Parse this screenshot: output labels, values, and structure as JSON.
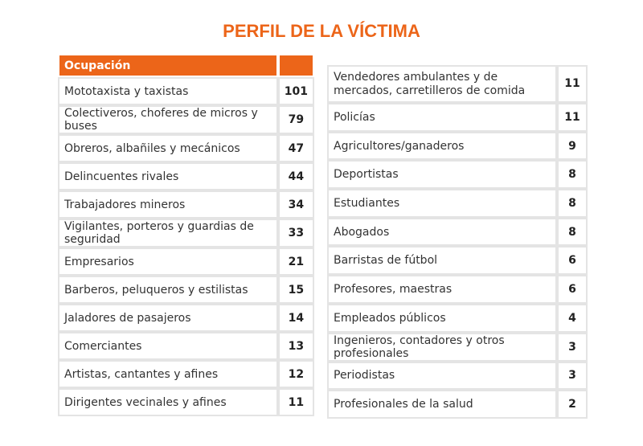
{
  "title": "PERFIL DE LA VÍCTIMA",
  "left_table": {
    "header": "Ocupación",
    "rows": [
      {
        "label": "Mototaxista y taxistas",
        "value": "101"
      },
      {
        "label": "Colectiveros, choferes de micros y buses",
        "value": "79"
      },
      {
        "label": "Obreros, albañiles y mecánicos",
        "value": "47"
      },
      {
        "label": "Delincuentes rivales",
        "value": "44"
      },
      {
        "label": "Trabajadores mineros",
        "value": "34"
      },
      {
        "label": "Vigilantes, porteros y guardias de seguridad",
        "value": "33"
      },
      {
        "label": "Empresarios",
        "value": "21"
      },
      {
        "label": "Barberos, peluqueros y estilistas",
        "value": "15"
      },
      {
        "label": "Jaladores de pasajeros",
        "value": "14"
      },
      {
        "label": "Comerciantes",
        "value": "13"
      },
      {
        "label": "Artistas, cantantes y afines",
        "value": "12"
      },
      {
        "label": "Dirigentes vecinales y afines",
        "value": "11"
      }
    ]
  },
  "right_table": {
    "rows": [
      {
        "label": "Vendedores ambulantes y de mercados, carretilleros de comida",
        "value": "11"
      },
      {
        "label": "Policías",
        "value": "11"
      },
      {
        "label": "Agricultores/ganaderos",
        "value": "9"
      },
      {
        "label": "Deportistas",
        "value": "8"
      },
      {
        "label": "Estudiantes",
        "value": "8"
      },
      {
        "label": "Abogados",
        "value": "8"
      },
      {
        "label": "Barristas de fútbol",
        "value": "6"
      },
      {
        "label": "Profesores, maestras",
        "value": "6"
      },
      {
        "label": "Empleados públicos",
        "value": "4"
      },
      {
        "label": "Ingenieros, contadores y otros profesionales",
        "value": "3"
      },
      {
        "label": "Periodistas",
        "value": "3"
      },
      {
        "label": "Profesionales de la salud",
        "value": "2"
      }
    ]
  },
  "colors": {
    "accent": "#ec6519",
    "border": "#e4e4e4"
  }
}
